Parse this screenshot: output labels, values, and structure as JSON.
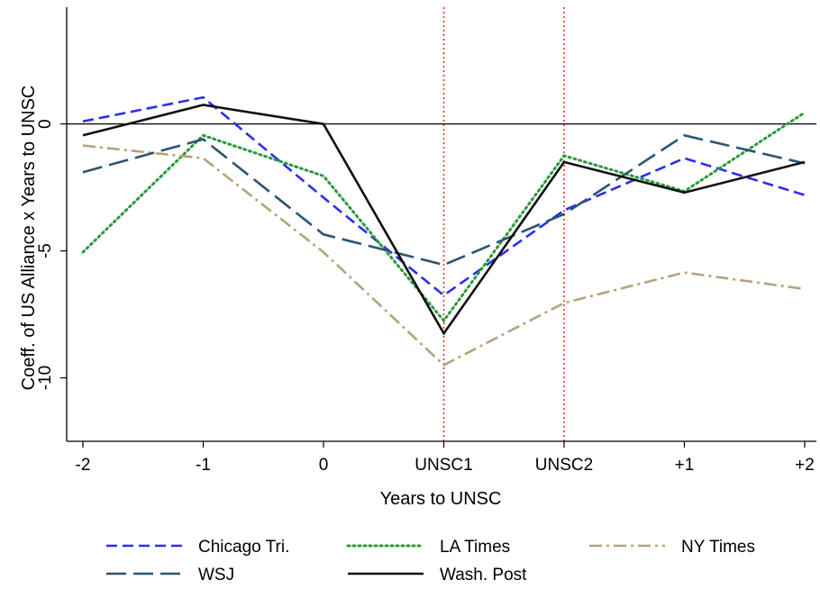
{
  "chart_data": {
    "type": "line",
    "xlabel": "Years to UNSC",
    "ylabel": "Coeff. of US Alliance x Years to UNSC",
    "categories": [
      "-2",
      "-1",
      "0",
      "UNSC1",
      "UNSC2",
      "+1",
      "+2"
    ],
    "yticks": [
      0,
      -5,
      -10
    ],
    "ylim": [
      -12.5,
      4.6
    ],
    "reference_lines": {
      "horizontal_y": 0,
      "vertical_at_categories": [
        "UNSC1",
        "UNSC2"
      ],
      "vertical_color": "#ff2a2a"
    },
    "series": [
      {
        "name": "Chicago Tri.",
        "color": "#2d2df0",
        "style": "dashed",
        "values": [
          0.1,
          1.05,
          -2.9,
          -6.75,
          -3.4,
          -1.35,
          -2.8
        ]
      },
      {
        "name": "LA Times",
        "color": "#2a9a3a",
        "style": "dotted",
        "values": [
          -5.05,
          -0.45,
          -2.05,
          -7.75,
          -1.25,
          -2.65,
          0.45
        ]
      },
      {
        "name": "NY Times",
        "color": "#b5a278",
        "style": "dashdot",
        "values": [
          -0.85,
          -1.35,
          -5.05,
          -9.5,
          -7.05,
          -5.85,
          -6.5
        ]
      },
      {
        "name": "WSJ",
        "color": "#2b5570",
        "style": "longdash",
        "values": [
          -1.9,
          -0.6,
          -4.35,
          -5.55,
          -3.55,
          -0.45,
          -1.55
        ]
      },
      {
        "name": "Wash. Post",
        "color": "#111111",
        "style": "solid",
        "values": [
          -0.45,
          0.75,
          0.0,
          -8.25,
          -1.5,
          -2.7,
          -1.5
        ]
      }
    ],
    "legend": {
      "placement": "bottom",
      "columns": 3
    },
    "grid": false
  }
}
